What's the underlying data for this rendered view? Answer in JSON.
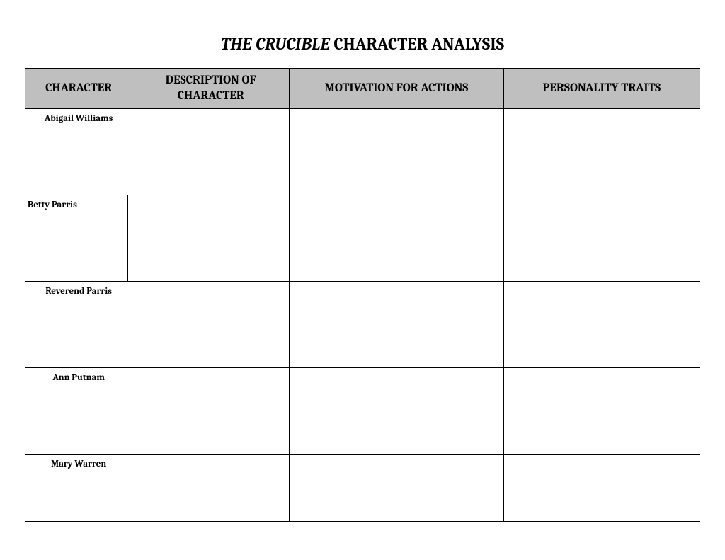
{
  "title": {
    "italic_part": "THE CRUCIBLE",
    "regular_part": " CHARACTER ANALYSIS"
  },
  "table": {
    "columns": [
      "CHARACTER",
      "DESCRIPTION OF CHARACTER",
      "MOTIVATION  FOR ACTIONS",
      "PERSONALITY TRAITS"
    ],
    "rows": [
      {
        "character": "Abigail Williams",
        "description": "",
        "motivation": "",
        "traits": ""
      },
      {
        "character": "Betty Parris",
        "description": "",
        "motivation": "",
        "traits": ""
      },
      {
        "character": "Reverend Parris",
        "description": "",
        "motivation": "",
        "traits": ""
      },
      {
        "character": "Ann Putnam",
        "description": "",
        "motivation": "",
        "traits": ""
      },
      {
        "character": "Mary Warren",
        "description": "",
        "motivation": "",
        "traits": ""
      }
    ],
    "header_bg_color": "#bfbfbf",
    "border_color": "#000000",
    "background_color": "#ffffff"
  }
}
